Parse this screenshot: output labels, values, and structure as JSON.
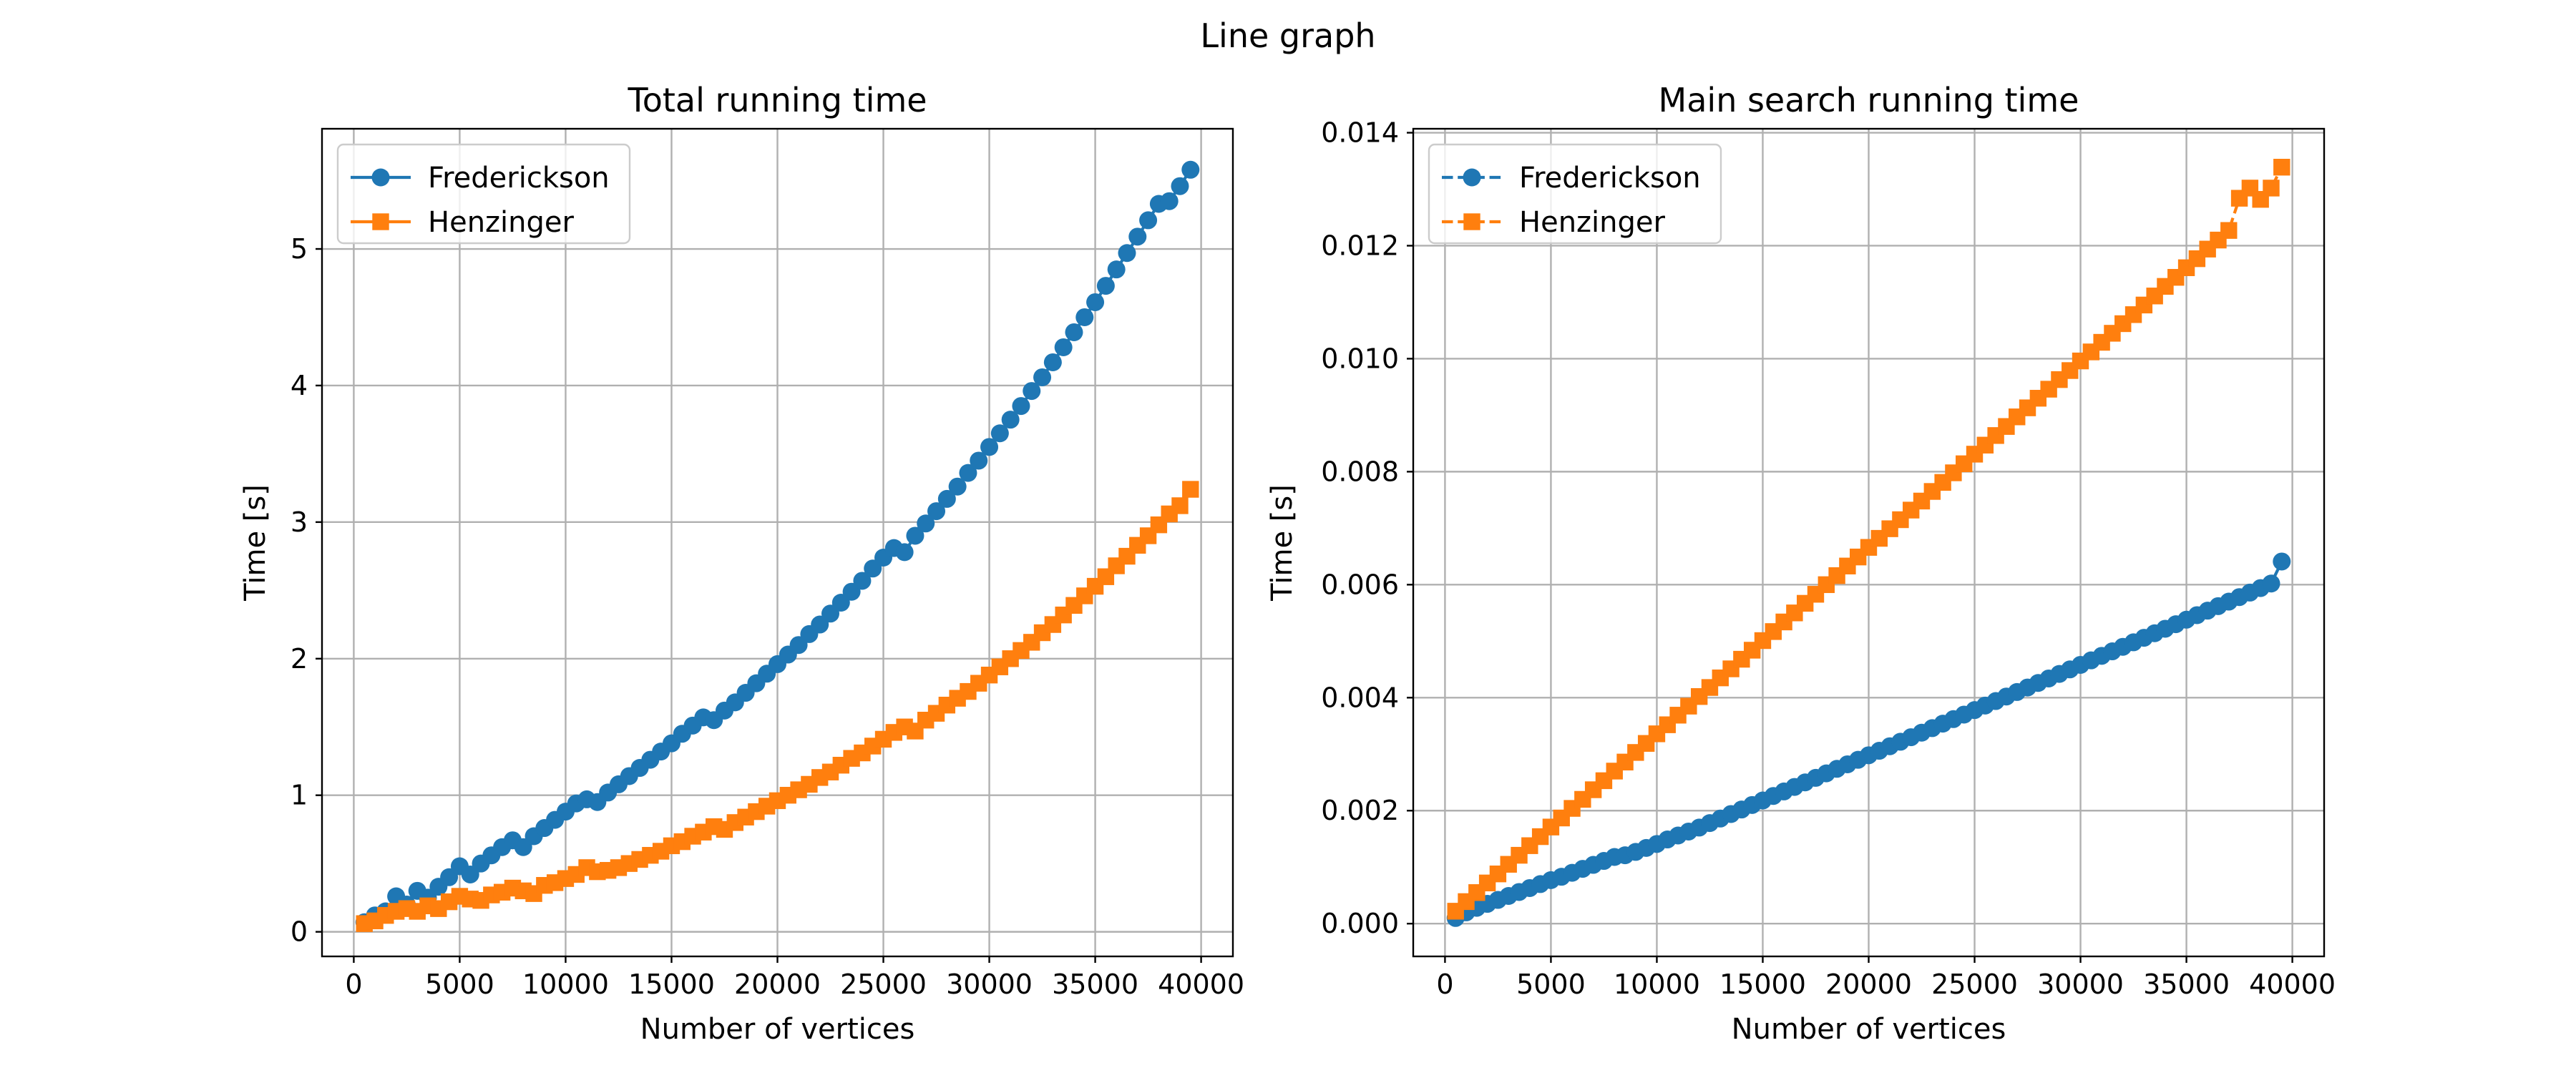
{
  "figure": {
    "suptitle": "Line graph"
  },
  "colors": {
    "fredrickson": "#1f77b4",
    "henzinger": "#ff7f0e"
  },
  "chart_data": [
    {
      "type": "line",
      "title": "Total running time",
      "xlabel": "Number of vertices",
      "ylabel": "Time [s]",
      "xlim": [
        -1500,
        41500
      ],
      "ylim": [
        -0.18,
        5.88
      ],
      "xticks": [
        0,
        5000,
        10000,
        15000,
        20000,
        25000,
        30000,
        35000,
        40000
      ],
      "xtick_labels": [
        "0",
        "5000",
        "10000",
        "15000",
        "20000",
        "25000",
        "30000",
        "35000",
        "40000"
      ],
      "yticks": [
        0,
        1,
        2,
        3,
        4,
        5
      ],
      "ytick_labels": [
        "0",
        "1",
        "2",
        "3",
        "4",
        "5"
      ],
      "grid": true,
      "legend_position": "upper-left",
      "x": [
        500,
        1000,
        1500,
        2000,
        2500,
        3000,
        3500,
        4000,
        4500,
        5000,
        5500,
        6000,
        6500,
        7000,
        7500,
        8000,
        8500,
        9000,
        9500,
        10000,
        10500,
        11000,
        11500,
        12000,
        12500,
        13000,
        13500,
        14000,
        14500,
        15000,
        15500,
        16000,
        16500,
        17000,
        17500,
        18000,
        18500,
        19000,
        19500,
        20000,
        20500,
        21000,
        21500,
        22000,
        22500,
        23000,
        23500,
        24000,
        24500,
        25000,
        25500,
        26000,
        26500,
        27000,
        27500,
        28000,
        28500,
        29000,
        29500,
        30000,
        30500,
        31000,
        31500,
        32000,
        32500,
        33000,
        33500,
        34000,
        34500,
        35000,
        35500,
        36000,
        36500,
        37000,
        37500,
        38000,
        38500,
        39000,
        39500
      ],
      "series": [
        {
          "name": "Frederickson",
          "marker": "circle",
          "line_style": "solid",
          "values": [
            0.07,
            0.12,
            0.15,
            0.26,
            0.2,
            0.3,
            0.25,
            0.33,
            0.4,
            0.48,
            0.42,
            0.5,
            0.56,
            0.62,
            0.67,
            0.62,
            0.7,
            0.76,
            0.82,
            0.88,
            0.94,
            0.97,
            0.95,
            1.02,
            1.08,
            1.14,
            1.2,
            1.26,
            1.32,
            1.38,
            1.45,
            1.51,
            1.57,
            1.55,
            1.62,
            1.68,
            1.75,
            1.82,
            1.89,
            1.96,
            2.03,
            2.1,
            2.18,
            2.25,
            2.33,
            2.41,
            2.49,
            2.57,
            2.66,
            2.74,
            2.81,
            2.78,
            2.9,
            2.99,
            3.08,
            3.17,
            3.26,
            3.36,
            3.45,
            3.55,
            3.65,
            3.75,
            3.85,
            3.96,
            4.06,
            4.17,
            4.28,
            4.39,
            4.5,
            4.61,
            4.73,
            4.85,
            4.97,
            5.09,
            5.21,
            5.33,
            5.35,
            5.46,
            5.58
          ]
        },
        {
          "name": "Henzinger",
          "marker": "square",
          "line_style": "solid",
          "values": [
            0.06,
            0.08,
            0.12,
            0.15,
            0.17,
            0.15,
            0.19,
            0.17,
            0.22,
            0.26,
            0.24,
            0.23,
            0.27,
            0.29,
            0.32,
            0.3,
            0.28,
            0.34,
            0.36,
            0.39,
            0.42,
            0.47,
            0.44,
            0.45,
            0.47,
            0.5,
            0.53,
            0.56,
            0.59,
            0.63,
            0.66,
            0.7,
            0.73,
            0.77,
            0.75,
            0.8,
            0.84,
            0.88,
            0.92,
            0.96,
            1.0,
            1.04,
            1.08,
            1.13,
            1.17,
            1.22,
            1.27,
            1.31,
            1.36,
            1.41,
            1.46,
            1.5,
            1.47,
            1.55,
            1.6,
            1.66,
            1.71,
            1.76,
            1.82,
            1.88,
            1.94,
            2.0,
            2.06,
            2.12,
            2.19,
            2.25,
            2.32,
            2.39,
            2.46,
            2.53,
            2.6,
            2.68,
            2.75,
            2.83,
            2.9,
            2.98,
            3.06,
            3.12,
            3.24
          ]
        }
      ]
    },
    {
      "type": "line",
      "title": "Main search running time",
      "xlabel": "Number of vertices",
      "ylabel": "Time [s]",
      "xlim": [
        -1500,
        41500
      ],
      "ylim": [
        -0.00058,
        0.01407
      ],
      "xticks": [
        0,
        5000,
        10000,
        15000,
        20000,
        25000,
        30000,
        35000,
        40000
      ],
      "xtick_labels": [
        "0",
        "5000",
        "10000",
        "15000",
        "20000",
        "25000",
        "30000",
        "35000",
        "40000"
      ],
      "yticks": [
        0,
        0.002,
        0.004,
        0.006,
        0.008,
        0.01,
        0.012,
        0.014
      ],
      "ytick_labels": [
        "0.000",
        "0.002",
        "0.004",
        "0.006",
        "0.008",
        "0.010",
        "0.012",
        "0.014"
      ],
      "grid": true,
      "legend_position": "upper-left",
      "x": [
        500,
        1000,
        1500,
        2000,
        2500,
        3000,
        3500,
        4000,
        4500,
        5000,
        5500,
        6000,
        6500,
        7000,
        7500,
        8000,
        8500,
        9000,
        9500,
        10000,
        10500,
        11000,
        11500,
        12000,
        12500,
        13000,
        13500,
        14000,
        14500,
        15000,
        15500,
        16000,
        16500,
        17000,
        17500,
        18000,
        18500,
        19000,
        19500,
        20000,
        20500,
        21000,
        21500,
        22000,
        22500,
        23000,
        23500,
        24000,
        24500,
        25000,
        25500,
        26000,
        26500,
        27000,
        27500,
        28000,
        28500,
        29000,
        29500,
        30000,
        30500,
        31000,
        31500,
        32000,
        32500,
        33000,
        33500,
        34000,
        34500,
        35000,
        35500,
        36000,
        36500,
        37000,
        37500,
        38000,
        38500,
        39000,
        39500
      ],
      "series": [
        {
          "name": "Frederickson",
          "marker": "circle",
          "line_style": "dashed",
          "values": [
            0.0001,
            0.0002,
            0.00028,
            0.00035,
            0.00042,
            0.00049,
            0.00056,
            0.00063,
            0.0007,
            0.00077,
            0.00083,
            0.0009,
            0.00097,
            0.00104,
            0.00111,
            0.00118,
            0.00121,
            0.00127,
            0.00134,
            0.00141,
            0.00149,
            0.00156,
            0.00163,
            0.0017,
            0.00178,
            0.00186,
            0.00194,
            0.00202,
            0.0021,
            0.00218,
            0.00226,
            0.00234,
            0.00242,
            0.0025,
            0.00258,
            0.00266,
            0.00274,
            0.00282,
            0.0029,
            0.00298,
            0.00306,
            0.00314,
            0.00322,
            0.0033,
            0.00338,
            0.00346,
            0.00354,
            0.00362,
            0.0037,
            0.00378,
            0.00386,
            0.00394,
            0.00402,
            0.0041,
            0.00418,
            0.00426,
            0.00434,
            0.00442,
            0.0045,
            0.00458,
            0.00466,
            0.00474,
            0.00482,
            0.0049,
            0.00498,
            0.00506,
            0.00514,
            0.00522,
            0.0053,
            0.00538,
            0.00546,
            0.00554,
            0.00562,
            0.0057,
            0.00578,
            0.00586,
            0.00594,
            0.00602,
            0.00641
          ]
        },
        {
          "name": "Henzinger",
          "marker": "square",
          "line_style": "dashed",
          "values": [
            0.00022,
            0.00039,
            0.00055,
            0.00072,
            0.00088,
            0.00105,
            0.00121,
            0.00138,
            0.00154,
            0.00171,
            0.00187,
            0.00204,
            0.0022,
            0.00237,
            0.00253,
            0.0027,
            0.00286,
            0.00303,
            0.00319,
            0.00336,
            0.00352,
            0.00369,
            0.00385,
            0.00402,
            0.00418,
            0.00435,
            0.00451,
            0.00468,
            0.00484,
            0.00501,
            0.00517,
            0.00534,
            0.0055,
            0.00567,
            0.00583,
            0.006,
            0.00616,
            0.00633,
            0.00649,
            0.00666,
            0.00682,
            0.00699,
            0.00715,
            0.00732,
            0.00748,
            0.00765,
            0.00781,
            0.00798,
            0.00814,
            0.00831,
            0.00847,
            0.00864,
            0.0088,
            0.00897,
            0.00913,
            0.0093,
            0.00946,
            0.00963,
            0.00979,
            0.00996,
            0.01012,
            0.01029,
            0.01045,
            0.01062,
            0.01078,
            0.01095,
            0.01111,
            0.01128,
            0.01144,
            0.01161,
            0.01177,
            0.01194,
            0.0121,
            0.01227,
            0.01284,
            0.01302,
            0.01282,
            0.01302,
            0.01339
          ]
        }
      ]
    }
  ]
}
